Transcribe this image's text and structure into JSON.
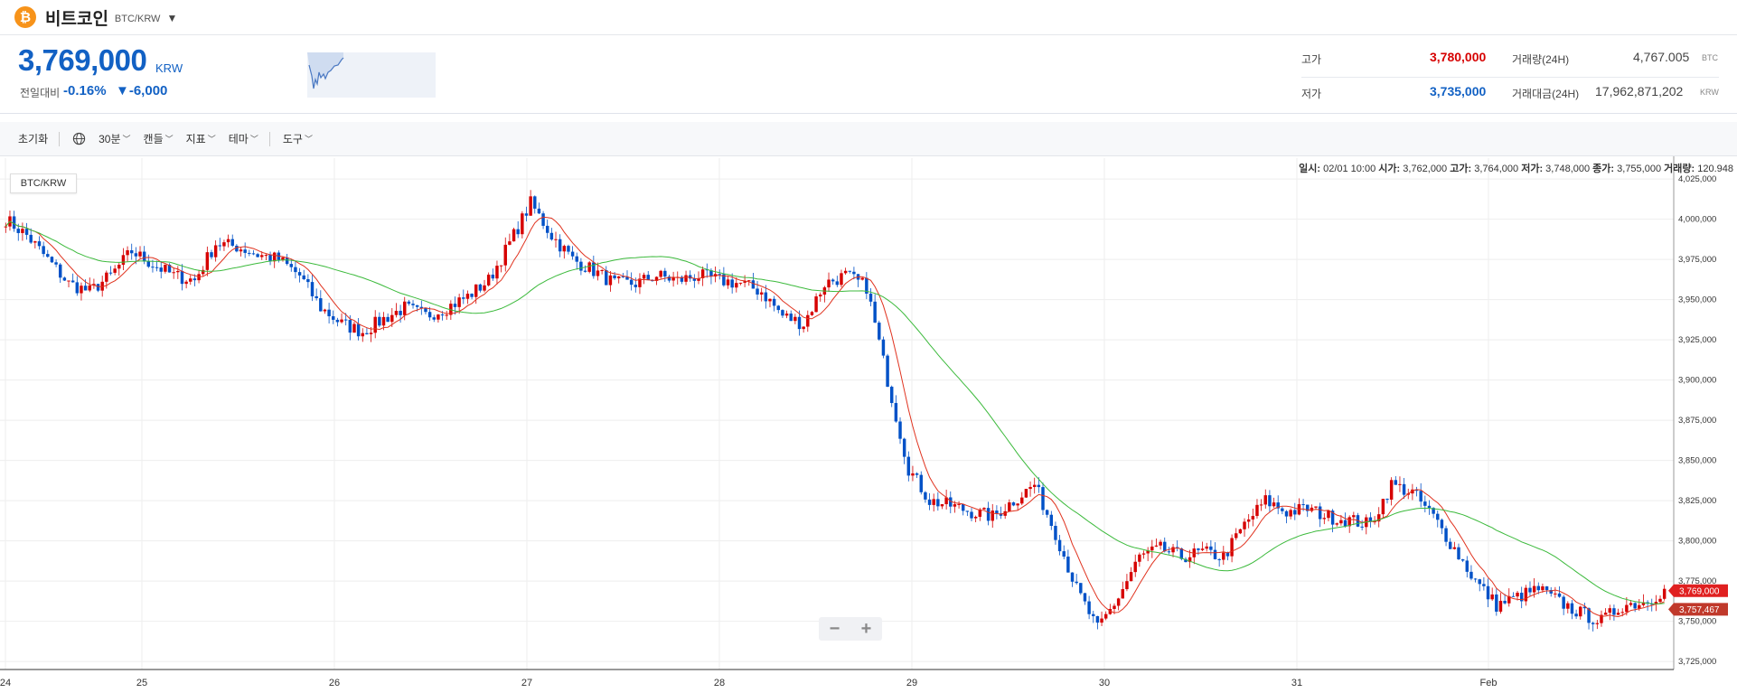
{
  "header": {
    "coin_name": "비트코인",
    "pair": "BTC/KRW",
    "coin_symbol": "₿"
  },
  "price": {
    "current": "3,769,000",
    "unit": "KRW",
    "change_label": "전일대비",
    "change_pct": "-0.16%",
    "change_amt": "▼-6,000"
  },
  "stats": {
    "high_label": "고가",
    "high_value": "3,780,000",
    "low_label": "저가",
    "low_value": "3,735,000",
    "volume_label": "거래량(24H)",
    "volume_value": "4,767.005",
    "volume_unit": "BTC",
    "amount_label": "거래대금(24H)",
    "amount_value": "17,962,871,202",
    "amount_unit": "KRW"
  },
  "toolbar": {
    "reset": "초기화",
    "interval": "30분",
    "candle": "캔들",
    "indicator": "지표",
    "theme": "테마",
    "tools": "도구"
  },
  "info": {
    "date_label": "일시:",
    "date_value": "02/01 10:00",
    "open_label": "시가:",
    "open_value": "3,762,000",
    "high_label": "고가:",
    "high_value": "3,764,000",
    "low_label": "저가:",
    "low_value": "3,748,000",
    "close_label": "종가:",
    "close_value": "3,755,000",
    "vol_label": "거래량:",
    "vol_value": "120.948"
  },
  "chart_pair_tag": "BTC/KRW",
  "zoom": {
    "minus": "−",
    "plus": "+"
  },
  "colors": {
    "up": "#d60000",
    "down": "#0051c7",
    "ma_short": "#e0321e",
    "ma_long": "#3cba3c",
    "accent": "#1261c4"
  },
  "chart_data": {
    "type": "candlestick",
    "y_ticks": [
      3725000,
      3750000,
      3775000,
      3800000,
      3825000,
      3850000,
      3875000,
      3900000,
      3925000,
      3950000,
      3975000,
      4000000,
      4025000
    ],
    "y_tick_labels": [
      "3,725,000",
      "3,750,000",
      "3,775,000",
      "3,800,000",
      "3,825,000",
      "3,850,000",
      "3,875,000",
      "3,900,000",
      "3,925,000",
      "3,950,000",
      "3,975,000",
      "4,000,000",
      "4,025,000"
    ],
    "ylim": [
      3720000,
      4038000
    ],
    "x_ticks": [
      "24",
      "25",
      "26",
      "27",
      "28",
      "29",
      "30",
      "31",
      "Feb"
    ],
    "current_price_label": "3,769,000",
    "ma_price_label": "3,757,467",
    "anchor_prices": [
      4000000,
      3990000,
      3975000,
      3960000,
      3955000,
      3965000,
      3980000,
      3972000,
      3965000,
      3962000,
      3985000,
      3983000,
      3978000,
      3975000,
      3965000,
      3945000,
      3935000,
      3930000,
      3938000,
      3945000,
      3940000,
      3945000,
      3952000,
      3962000,
      3985000,
      4010000,
      3990000,
      3975000,
      3968000,
      3960000,
      3960000,
      3965000,
      3962000,
      3965000,
      3962000,
      3960000,
      3955000,
      3940000,
      3935000,
      3960000,
      3965000,
      3958000,
      3900000,
      3845000,
      3825000,
      3822000,
      3818000,
      3815000,
      3825000,
      3835000,
      3805000,
      3770000,
      3745000,
      3765000,
      3790000,
      3795000,
      3790000,
      3793000,
      3790000,
      3810000,
      3825000,
      3818000,
      3820000,
      3815000,
      3813000,
      3810000,
      3835000,
      3830000,
      3815000,
      3795000,
      3775000,
      3760000,
      3765000,
      3770000,
      3762000,
      3755000,
      3750000,
      3760000,
      3762000,
      3769000
    ]
  }
}
